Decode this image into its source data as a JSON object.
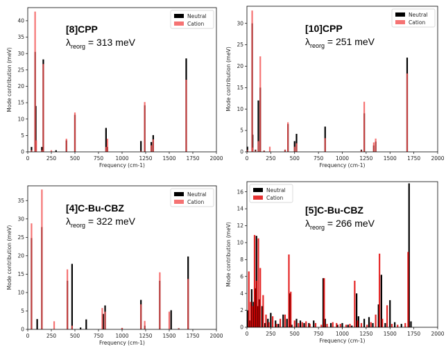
{
  "colors": {
    "neutral": "#000000",
    "cation": "#f25050",
    "cation5": "#e00000"
  },
  "chart_data": [
    {
      "type": "bar",
      "title": "[8]CPP",
      "lambda_label": "λ",
      "lambda_sub": "reorg",
      "lambda_value": " = 313 meV",
      "xlabel": "Frequency (cm-1)",
      "ylabel": "Mode contribution (meV)",
      "xlim": [
        0,
        2000
      ],
      "ylim": [
        0,
        44
      ],
      "xticks": [
        0,
        250,
        500,
        750,
        1000,
        1250,
        1500,
        1750,
        2000
      ],
      "yticks": [
        0,
        5,
        10,
        15,
        20,
        25,
        30,
        35,
        40
      ],
      "legend": "top-right",
      "series": [
        {
          "name": "Neutral",
          "x": [
            40,
            78,
            85,
            150,
            165,
            300,
            410,
            500,
            830,
            845,
            1200,
            1240,
            1310,
            1330,
            1680
          ],
          "values": [
            1.5,
            30.5,
            14,
            1.5,
            28.2,
            0.5,
            3.5,
            11.3,
            7.3,
            1.5,
            3.3,
            14.2,
            3,
            5.1,
            28.5
          ]
        },
        {
          "name": "Cation",
          "x": [
            40,
            78,
            90,
            150,
            165,
            250,
            410,
            500,
            830,
            845,
            1200,
            1240,
            1310,
            1330,
            1680
          ],
          "values": [
            0.5,
            42.8,
            3.5,
            0.5,
            26.8,
            0.5,
            4,
            12,
            1.5,
            4,
            0.3,
            15.2,
            2,
            3.8,
            22
          ]
        }
      ]
    },
    {
      "type": "bar",
      "title": "[10]CPP",
      "lambda_label": "λ",
      "lambda_sub": "reorg",
      "lambda_value": " = 251 meV",
      "xlabel": "Frequency (cm-1)",
      "ylabel": "Mode contribution (meV)",
      "xlim": [
        0,
        2000
      ],
      "ylim": [
        0,
        34
      ],
      "xticks": [
        0,
        250,
        500,
        750,
        1000,
        1250,
        1500,
        1750,
        2000
      ],
      "yticks": [
        0,
        5,
        10,
        15,
        20,
        25,
        30
      ],
      "legend": "top-right",
      "series": [
        {
          "name": "Neutral",
          "x": [
            5,
            55,
            60,
            90,
            120,
            140,
            180,
            400,
            430,
            500,
            520,
            820,
            1200,
            1230,
            1330,
            1350,
            1680
          ],
          "values": [
            1.2,
            30,
            4,
            0.5,
            12,
            15,
            0.3,
            0.5,
            6.5,
            2.5,
            4.2,
            5.9,
            0.5,
            9,
            1.5,
            2.4,
            22
          ]
        },
        {
          "name": "Cation",
          "x": [
            5,
            55,
            60,
            90,
            120,
            140,
            180,
            240,
            400,
            430,
            500,
            520,
            820,
            1200,
            1230,
            1330,
            1350,
            1680
          ],
          "values": [
            0.5,
            33,
            1,
            0.3,
            2.5,
            22.3,
            0.3,
            1.2,
            0.5,
            6.9,
            1.2,
            2,
            3.2,
            0.3,
            11.7,
            2.2,
            3.1,
            18.3
          ]
        }
      ]
    },
    {
      "type": "bar",
      "title": "[4]C-Bu-CBZ",
      "lambda_label": "λ",
      "lambda_sub": "reorg",
      "lambda_value": " = 322 meV",
      "xlabel": "Frequency (cm-1)",
      "ylabel": "Mode contribution (meV)",
      "xlim": [
        0,
        2000
      ],
      "ylim": [
        0,
        39
      ],
      "xticks": [
        0,
        250,
        500,
        750,
        1000,
        1250,
        1500,
        1750,
        2000
      ],
      "yticks": [
        0,
        5,
        10,
        15,
        20,
        25,
        30,
        35
      ],
      "legend": "top-right",
      "series": [
        {
          "name": "Neutral",
          "x": [
            40,
            100,
            150,
            420,
            470,
            560,
            620,
            800,
            820,
            1000,
            1200,
            1240,
            1400,
            1520,
            1600,
            1700
          ],
          "values": [
            24.8,
            2.8,
            27.8,
            13.2,
            17.8,
            0.5,
            2.7,
            4.2,
            6.5,
            0.3,
            8,
            1,
            13.2,
            5.2,
            0.3,
            19.8
          ]
        },
        {
          "name": "Cation",
          "x": [
            40,
            150,
            280,
            420,
            470,
            790,
            820,
            1000,
            1200,
            1240,
            1400,
            1500,
            1600,
            1700
          ],
          "values": [
            28.8,
            38,
            2.2,
            16.3,
            1,
            5.8,
            4.8,
            0.4,
            6.8,
            2.3,
            15.5,
            4.8,
            0.3,
            13.7
          ]
        }
      ]
    },
    {
      "type": "bar",
      "title": "[5]C-Bu-CBZ",
      "lambda_label": "λ",
      "lambda_sub": "reorg",
      "lambda_value": " = 266 meV",
      "xlabel": "Frequency (cm-1)",
      "ylabel": "Mode contribution (meV)",
      "xlim": [
        0,
        2000
      ],
      "ylim": [
        0,
        17.2
      ],
      "xticks": [
        0,
        250,
        500,
        750,
        1000,
        1250,
        1500,
        1750,
        2000
      ],
      "yticks": [
        0,
        2,
        4,
        6,
        8,
        10,
        12,
        14,
        16
      ],
      "legend": "top-left",
      "series": [
        {
          "name": "Neutral",
          "x": [
            10,
            30,
            50,
            70,
            85,
            100,
            115,
            130,
            160,
            190,
            220,
            250,
            300,
            330,
            380,
            420,
            450,
            470,
            520,
            560,
            600,
            650,
            700,
            800,
            820,
            880,
            950,
            1000,
            1060,
            1100,
            1150,
            1170,
            1230,
            1280,
            1320,
            1380,
            1410,
            1450,
            1500,
            1550,
            1620,
            1700,
            1720
          ],
          "values": [
            2,
            0.8,
            4.5,
            3,
            4.6,
            10.8,
            2.5,
            3.3,
            2.5,
            0.5,
            1,
            1.7,
            0.8,
            0.4,
            1.5,
            1,
            4,
            0.3,
            1,
            0.8,
            0.5,
            0.5,
            0.8,
            5.8,
            1,
            0.5,
            0.3,
            0.5,
            0.3,
            0.2,
            4,
            1.3,
            1,
            1.2,
            0.5,
            2.7,
            6.2,
            0.5,
            3.2,
            0.6,
            0.4,
            17,
            0.7
          ]
        },
        {
          "name": "Cation",
          "x": [
            20,
            40,
            60,
            80,
            100,
            120,
            140,
            170,
            200,
            230,
            270,
            310,
            350,
            400,
            440,
            460,
            500,
            540,
            580,
            620,
            660,
            720,
            780,
            810,
            840,
            900,
            940,
            980,
            1040,
            1080,
            1130,
            1160,
            1200,
            1260,
            1300,
            1350,
            1390,
            1420,
            1470,
            1520,
            1580,
            1660,
            1690
          ],
          "values": [
            6.6,
            3,
            2.5,
            10.9,
            5.5,
            10.5,
            7,
            3.8,
            1.5,
            0.6,
            1.3,
            0.4,
            1,
            1.5,
            8.6,
            4.2,
            0.8,
            0.5,
            0.6,
            0.7,
            0.4,
            0.5,
            0.3,
            5.8,
            0.4,
            0.6,
            0.5,
            0.4,
            0.3,
            0.4,
            5.5,
            0.8,
            0.5,
            0.3,
            0.6,
            1.5,
            8.7,
            1,
            2.6,
            0.4,
            0.3,
            0.5,
            8.9
          ]
        }
      ]
    }
  ]
}
